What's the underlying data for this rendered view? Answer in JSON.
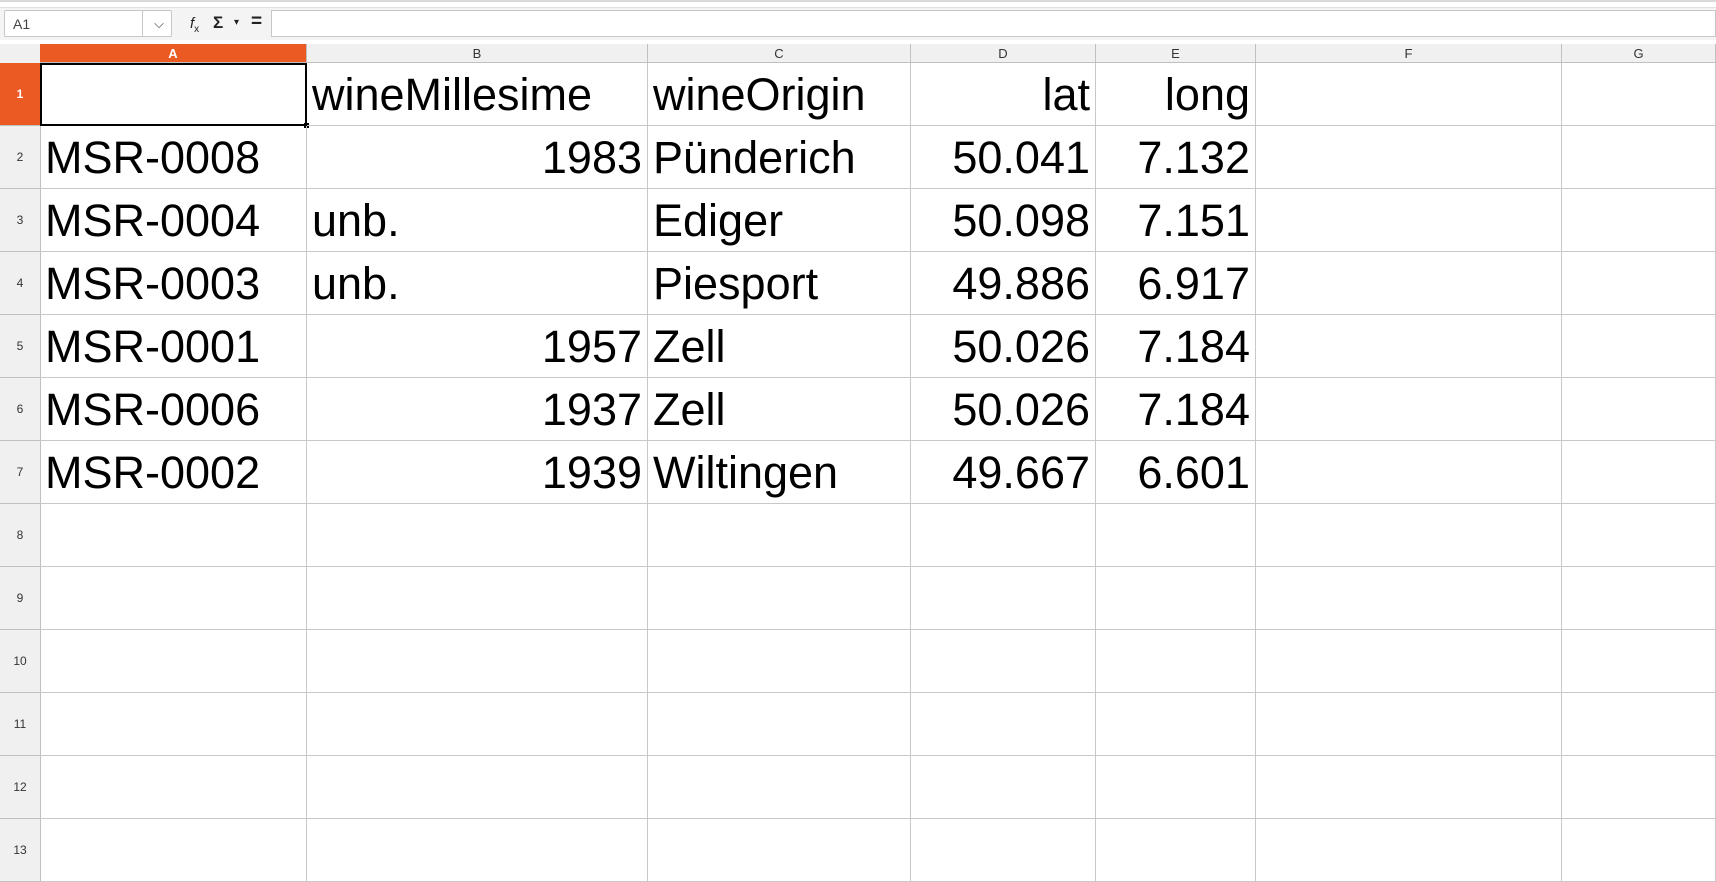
{
  "formula_bar": {
    "name_box_value": "A1",
    "name_box_arrow": "⌵",
    "fx_label": "f",
    "fx_sub": "x",
    "sum_label": "Σ",
    "sum_arrow": "▾",
    "equals_label": "=",
    "formula_value": ""
  },
  "sheet": {
    "columns": [
      "A",
      "B",
      "C",
      "D",
      "E",
      "F",
      "G"
    ],
    "rows": [
      "1",
      "2",
      "3",
      "4",
      "5",
      "6",
      "7",
      "8",
      "9",
      "10",
      "11",
      "12",
      "13"
    ],
    "selected_cell": "A1",
    "accent_color": "#eb5a22",
    "cells": {
      "A1": "",
      "B1": "wineMillesime",
      "C1": "wineOrigin",
      "D1": "lat",
      "E1": "long",
      "A2": "MSR-0008",
      "B2": "1983",
      "C2": "Pünderich",
      "D2": "50.041",
      "E2": "7.132",
      "A3": "MSR-0004",
      "B3": "unb.",
      "C3": "Ediger",
      "D3": "50.098",
      "E3": "7.151",
      "A4": "MSR-0003",
      "B4": "unb.",
      "C4": "Piesport",
      "D4": "49.886",
      "E4": "6.917",
      "A5": "MSR-0001",
      "B5": "1957",
      "C5": "Zell",
      "D5": "50.026",
      "E5": "7.184",
      "A6": "MSR-0006",
      "B6": "1937",
      "C6": "Zell",
      "D6": "50.026",
      "E6": "7.184",
      "A7": "MSR-0002",
      "B7": "1939",
      "C7": "Wiltingen",
      "D7": "49.667",
      "E7": "6.601"
    }
  }
}
